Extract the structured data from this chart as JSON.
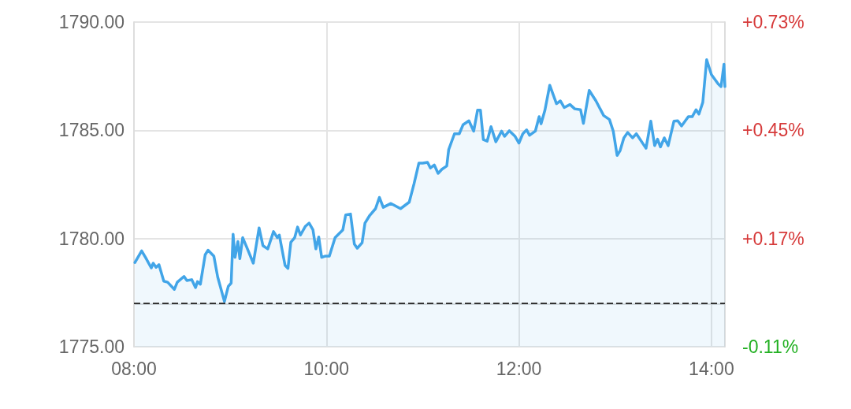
{
  "chart_data": {
    "type": "area",
    "x": [
      8.01,
      8.08,
      8.12,
      8.18,
      8.2,
      8.23,
      8.26,
      8.31,
      8.35,
      8.42,
      8.45,
      8.52,
      8.55,
      8.6,
      8.64,
      8.66,
      8.69,
      8.74,
      8.77,
      8.83,
      8.87,
      8.94,
      8.98,
      9.01,
      9.03,
      9.05,
      9.08,
      9.1,
      9.13,
      9.17,
      9.24,
      9.3,
      9.34,
      9.39,
      9.45,
      9.49,
      9.51,
      9.57,
      9.6,
      9.63,
      9.67,
      9.7,
      9.73,
      9.78,
      9.82,
      9.86,
      9.89,
      9.92,
      9.95,
      9.99,
      10.03,
      10.09,
      10.17,
      10.2,
      10.25,
      10.29,
      10.32,
      10.37,
      10.4,
      10.45,
      10.51,
      10.55,
      10.59,
      10.67,
      10.77,
      10.86,
      10.91,
      10.96,
      11.0,
      11.05,
      11.08,
      11.12,
      11.16,
      11.2,
      11.25,
      11.27,
      11.33,
      11.38,
      11.42,
      11.48,
      11.53,
      11.57,
      11.6,
      11.63,
      11.67,
      11.71,
      11.76,
      11.82,
      11.85,
      11.9,
      11.96,
      12.0,
      12.04,
      12.08,
      12.11,
      12.17,
      12.21,
      12.23,
      12.27,
      12.32,
      12.39,
      12.43,
      12.47,
      12.53,
      12.58,
      12.64,
      12.67,
      12.73,
      12.8,
      12.88,
      12.94,
      12.98,
      13.02,
      13.05,
      13.09,
      13.13,
      13.18,
      13.22,
      13.32,
      13.37,
      13.41,
      13.44,
      13.47,
      13.51,
      13.55,
      13.61,
      13.65,
      13.69,
      13.76,
      13.8,
      13.84,
      13.87,
      13.91,
      13.95,
      14.0,
      14.07,
      14.1,
      14.13,
      14.14
    ],
    "series": [
      {
        "color": "#42a5e8",
        "values": [
          1778.89,
          1779.43,
          1779.13,
          1778.64,
          1778.86,
          1778.67,
          1778.79,
          1778.03,
          1777.98,
          1777.65,
          1777.98,
          1778.25,
          1778.06,
          1778.1,
          1777.73,
          1778.01,
          1777.89,
          1779.25,
          1779.46,
          1779.19,
          1778.22,
          1777.09,
          1777.79,
          1777.94,
          1780.2,
          1779.13,
          1779.86,
          1779.07,
          1780.04,
          1779.62,
          1778.86,
          1780.49,
          1779.67,
          1779.52,
          1780.32,
          1780.04,
          1780.16,
          1778.76,
          1778.62,
          1779.83,
          1780.04,
          1780.53,
          1780.16,
          1780.56,
          1780.71,
          1780.4,
          1779.52,
          1780.07,
          1779.13,
          1779.19,
          1779.19,
          1780.04,
          1780.4,
          1781.09,
          1781.13,
          1779.74,
          1779.55,
          1779.8,
          1780.71,
          1781.07,
          1781.38,
          1781.9,
          1781.44,
          1781.62,
          1781.38,
          1781.68,
          1782.53,
          1783.48,
          1783.48,
          1783.52,
          1783.26,
          1783.4,
          1783.01,
          1783.2,
          1783.35,
          1784.11,
          1784.84,
          1784.84,
          1785.26,
          1785.44,
          1784.96,
          1785.93,
          1785.93,
          1784.57,
          1784.5,
          1785.17,
          1784.47,
          1784.96,
          1784.72,
          1784.98,
          1784.72,
          1784.41,
          1784.84,
          1785.02,
          1784.77,
          1784.96,
          1785.63,
          1785.3,
          1785.93,
          1787.08,
          1786.23,
          1786.36,
          1786.05,
          1786.19,
          1785.99,
          1785.95,
          1785.32,
          1786.84,
          1786.36,
          1785.68,
          1785.5,
          1784.96,
          1783.84,
          1784.05,
          1784.65,
          1784.9,
          1784.65,
          1784.84,
          1784.17,
          1785.42,
          1784.29,
          1784.59,
          1784.23,
          1784.65,
          1784.29,
          1785.42,
          1785.44,
          1785.2,
          1785.63,
          1785.63,
          1785.95,
          1785.75,
          1786.29,
          1788.26,
          1787.57,
          1787.14,
          1787.02,
          1788.05,
          1787.02
        ]
      }
    ],
    "xlim": [
      8,
      14.14
    ],
    "xticks": [
      {
        "value": 8,
        "label": "08:00"
      },
      {
        "value": 10,
        "label": "10:00"
      },
      {
        "value": 12,
        "label": "12:00"
      },
      {
        "value": 14,
        "label": "14:00"
      }
    ],
    "ylim": [
      1775,
      1790
    ],
    "yticks": [
      {
        "value": 1775,
        "label": "1775.00"
      },
      {
        "value": 1780,
        "label": "1780.00"
      },
      {
        "value": 1785,
        "label": "1785.00"
      },
      {
        "value": 1790,
        "label": "1790.00"
      }
    ],
    "y2lim": [
      -0.11,
      0.73
    ],
    "y2ticks": [
      {
        "value": -0.11,
        "label": "-0.11%"
      },
      {
        "value": 0.17,
        "label": "+0.17%"
      },
      {
        "value": 0.45,
        "label": "+0.45%"
      },
      {
        "value": 0.73,
        "label": "+0.73%"
      }
    ],
    "ref_lines": [
      {
        "axis": "y",
        "value": 1777,
        "color": "#333333",
        "line_style": "dashed"
      }
    ],
    "grid": true,
    "marker": "none",
    "line_style": "solid"
  }
}
